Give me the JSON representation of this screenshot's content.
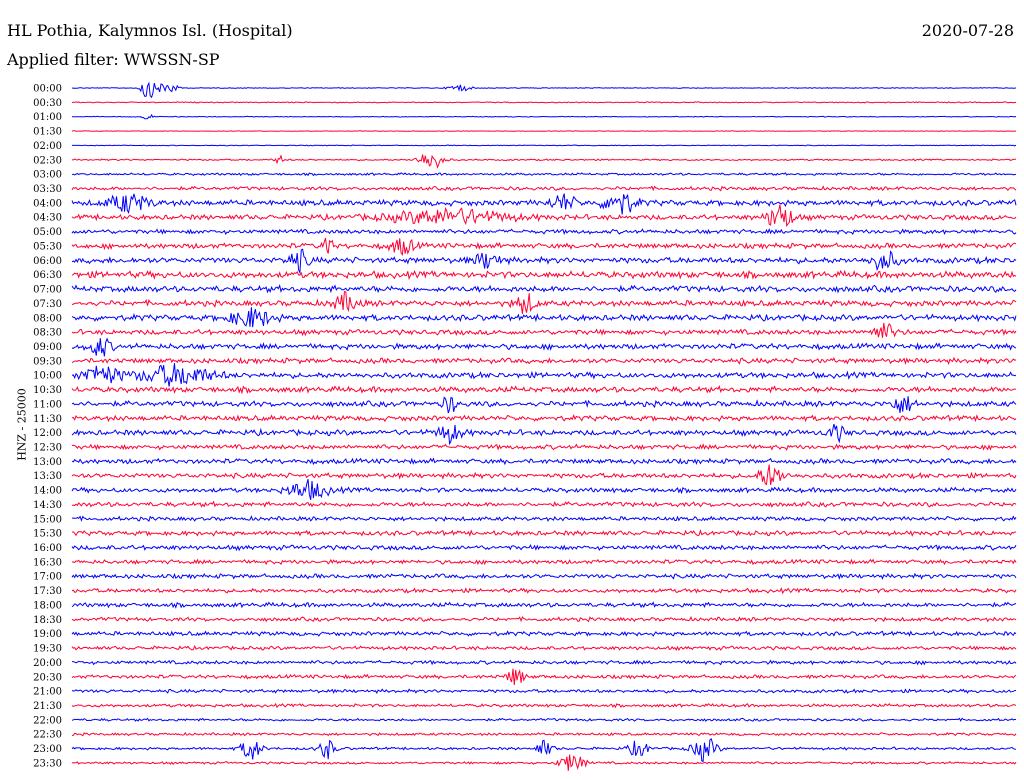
{
  "header": {
    "station": "HL Pothia, Kalymnos Isl. (Hospital)",
    "date": "2020-07-28",
    "filter_label": "Applied filter: WWSSN-SP"
  },
  "chart_data": {
    "type": "line",
    "title": "HL Pothia, Kalymnos Isl. (Hospital)",
    "ylabel": "HNZ - 25000",
    "trace_colors": [
      "#0000ff",
      "#ff0033"
    ],
    "row_labels": [
      "00:00",
      "00:30",
      "01:00",
      "01:30",
      "02:00",
      "02:30",
      "03:00",
      "03:30",
      "04:00",
      "04:30",
      "05:00",
      "05:30",
      "06:00",
      "06:30",
      "07:00",
      "07:30",
      "08:00",
      "08:30",
      "09:00",
      "09:30",
      "10:00",
      "10:30",
      "11:00",
      "11:30",
      "12:00",
      "12:30",
      "13:00",
      "13:30",
      "14:00",
      "14:30",
      "15:00",
      "15:30",
      "16:00",
      "16:30",
      "17:00",
      "17:30",
      "18:00",
      "18:30",
      "19:00",
      "19:30",
      "20:00",
      "20:30",
      "21:00",
      "21:30",
      "22:00",
      "22:30",
      "23:00",
      "23:30"
    ],
    "noise_level": [
      0.3,
      0.4,
      0.3,
      0.2,
      0.3,
      0.6,
      0.9,
      1.4,
      2.2,
      2.0,
      1.7,
      2.0,
      2.3,
      2.6,
      2.4,
      2.2,
      2.3,
      2.0,
      2.1,
      2.0,
      2.2,
      2.2,
      2.1,
      2.0,
      2.1,
      1.8,
      1.9,
      1.9,
      1.8,
      1.8,
      1.6,
      1.8,
      1.8,
      1.6,
      1.7,
      1.6,
      1.7,
      1.5,
      1.6,
      1.4,
      1.4,
      1.4,
      1.3,
      1.2,
      1.0,
      1.0,
      1.0,
      0.9
    ],
    "events": [
      {
        "row": 0,
        "t": 0.08,
        "amp": 14,
        "width": 0.006
      },
      {
        "row": 0,
        "t": 0.1,
        "amp": 7,
        "width": 0.01
      },
      {
        "row": 0,
        "t": 0.41,
        "amp": 4,
        "width": 0.01
      },
      {
        "row": 2,
        "t": 0.08,
        "amp": 6,
        "width": 0.004
      },
      {
        "row": 5,
        "t": 0.38,
        "amp": 10,
        "width": 0.012
      },
      {
        "row": 5,
        "t": 0.22,
        "amp": 4,
        "width": 0.005
      },
      {
        "row": 8,
        "t": 0.06,
        "amp": 9,
        "width": 0.02
      },
      {
        "row": 8,
        "t": 0.52,
        "amp": 8,
        "width": 0.012
      },
      {
        "row": 8,
        "t": 0.58,
        "amp": 12,
        "width": 0.015
      },
      {
        "row": 9,
        "t": 0.4,
        "amp": 7,
        "width": 0.06
      },
      {
        "row": 9,
        "t": 0.75,
        "amp": 14,
        "width": 0.012
      },
      {
        "row": 11,
        "t": 0.27,
        "amp": 10,
        "width": 0.005
      },
      {
        "row": 11,
        "t": 0.35,
        "amp": 8,
        "width": 0.012
      },
      {
        "row": 12,
        "t": 0.24,
        "amp": 10,
        "width": 0.01
      },
      {
        "row": 12,
        "t": 0.44,
        "amp": 8,
        "width": 0.012
      },
      {
        "row": 12,
        "t": 0.86,
        "amp": 10,
        "width": 0.012
      },
      {
        "row": 15,
        "t": 0.29,
        "amp": 9,
        "width": 0.012
      },
      {
        "row": 15,
        "t": 0.48,
        "amp": 10,
        "width": 0.01
      },
      {
        "row": 16,
        "t": 0.19,
        "amp": 9,
        "width": 0.02
      },
      {
        "row": 17,
        "t": 0.86,
        "amp": 8,
        "width": 0.012
      },
      {
        "row": 18,
        "t": 0.03,
        "amp": 10,
        "width": 0.01
      },
      {
        "row": 20,
        "t": 0.03,
        "amp": 9,
        "width": 0.02
      },
      {
        "row": 20,
        "t": 0.11,
        "amp": 10,
        "width": 0.035
      },
      {
        "row": 22,
        "t": 0.4,
        "amp": 10,
        "width": 0.006
      },
      {
        "row": 22,
        "t": 0.88,
        "amp": 8,
        "width": 0.012
      },
      {
        "row": 24,
        "t": 0.4,
        "amp": 9,
        "width": 0.012
      },
      {
        "row": 24,
        "t": 0.81,
        "amp": 8,
        "width": 0.008
      },
      {
        "row": 27,
        "t": 0.74,
        "amp": 11,
        "width": 0.012
      },
      {
        "row": 28,
        "t": 0.25,
        "amp": 9,
        "width": 0.02
      },
      {
        "row": 41,
        "t": 0.47,
        "amp": 9,
        "width": 0.008
      },
      {
        "row": 46,
        "t": 0.19,
        "amp": 11,
        "width": 0.01
      },
      {
        "row": 46,
        "t": 0.27,
        "amp": 10,
        "width": 0.008
      },
      {
        "row": 46,
        "t": 0.5,
        "amp": 8,
        "width": 0.008
      },
      {
        "row": 46,
        "t": 0.6,
        "amp": 8,
        "width": 0.01
      },
      {
        "row": 46,
        "t": 0.67,
        "amp": 12,
        "width": 0.012
      },
      {
        "row": 47,
        "t": 0.53,
        "amp": 9,
        "width": 0.012
      }
    ]
  }
}
